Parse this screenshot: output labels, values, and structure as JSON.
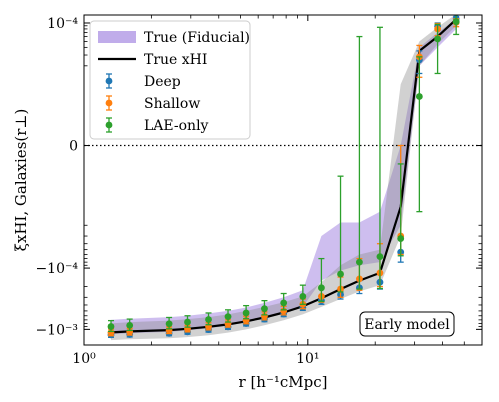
{
  "chart_data": {
    "type": "scatter",
    "xscale": "log",
    "yscale": "symlog",
    "xlim": [
      1,
      60
    ],
    "ylim": [
      -0.0018,
      0.000135
    ],
    "symlog_linthresh": 1e-05,
    "xlabel": "r [h⁻¹cMpc]",
    "ylabel": "ξxHI, Galaxies(r⊥)",
    "xticks": [
      {
        "value": 1,
        "label": "10⁰"
      },
      {
        "value": 10,
        "label": "10¹"
      }
    ],
    "yticks": [
      {
        "value": 0.0001,
        "label": "10⁻⁴"
      },
      {
        "value": 0,
        "label": "0"
      },
      {
        "value": -0.0001,
        "label": "−10⁻⁴"
      },
      {
        "value": -0.001,
        "label": "−10⁻³"
      }
    ],
    "zero_line": true,
    "annotation": "Early model",
    "legend_position": "top-left",
    "legend": [
      {
        "label": "True (Fiducial)",
        "kind": "band",
        "color": "#b9a3e8"
      },
      {
        "label": "True xHI",
        "kind": "line",
        "color": "#000000"
      },
      {
        "label": "Deep",
        "kind": "errorbar",
        "color": "#1f77b4"
      },
      {
        "label": "Shallow",
        "kind": "errorbar",
        "color": "#ff7f0e"
      },
      {
        "label": "LAE-only",
        "kind": "errorbar",
        "color": "#2ca02c"
      }
    ],
    "true_line": {
      "x": [
        1.32,
        1.6,
        2.4,
        2.9,
        3.6,
        4.4,
        5.3,
        6.4,
        7.8,
        9.5,
        11.5,
        14.0,
        17.0,
        21.0,
        26.0,
        31.5,
        38.0,
        46.0
      ],
      "y": [
        -0.00112,
        -0.00108,
        -0.00103,
        -0.00098,
        -0.00091,
        -0.00083,
        -0.00074,
        -0.00064,
        -0.00053,
        -0.00042,
        -0.00031,
        -0.00022,
        -0.00016,
        -0.00012,
        -1e-05,
        3.5e-05,
        6e-05,
        0.000115
      ],
      "band_lo": [
        -0.0015,
        -0.00145,
        -0.0014,
        -0.00134,
        -0.00125,
        -0.00113,
        -0.001,
        -0.00086,
        -0.00071,
        -0.00057,
        -0.00043,
        -0.00032,
        -0.00024,
        -0.00019,
        -3e-05,
        2e-05,
        4.5e-05,
        9e-05
      ],
      "band_hi": [
        -0.0008,
        -0.00076,
        -0.00072,
        -0.00068,
        -0.00063,
        -0.00057,
        -0.0005,
        -0.00043,
        -0.00036,
        -0.00029,
        -0.00017,
        -9e-05,
        -6e-05,
        -5e-05,
        1e-05,
        5e-05,
        8.5e-05,
        0.00014
      ]
    },
    "fiducial_band": {
      "x": [
        1.32,
        1.6,
        2.4,
        2.9,
        3.6,
        4.4,
        5.3,
        6.4,
        7.8,
        9.5,
        11.5,
        14.0,
        17.0,
        21.0,
        26.0,
        31.5,
        38.0,
        46.0
      ],
      "lo": [
        -0.0012,
        -0.00116,
        -0.0011,
        -0.00104,
        -0.00096,
        -0.00087,
        -0.00077,
        -0.00066,
        -0.00055,
        -0.00043,
        -0.00016,
        -0.00011,
        -9e-05,
        -8e-05,
        -2e-05,
        2e-05,
        4e-05,
        8e-05
      ],
      "hi": [
        -0.0007,
        -0.00067,
        -0.00063,
        -0.0006,
        -0.00055,
        -0.0005,
        -0.00044,
        -0.00037,
        -0.0003,
        -0.00023,
        -3e-05,
        -1.8e-05,
        -1.8e-05,
        -1.2e-05,
        0.0,
        4e-05,
        7e-05,
        0.000115
      ]
    },
    "series": [
      {
        "name": "Deep",
        "color": "#1f77b4",
        "x": [
          1.32,
          1.6,
          2.4,
          2.9,
          3.6,
          4.4,
          5.3,
          6.4,
          7.8,
          9.5,
          11.5,
          14.0,
          17.0,
          21.0,
          26.0,
          31.5,
          38.0,
          46.0
        ],
        "y": [
          -0.00123,
          -0.00121,
          -0.00116,
          -0.0011,
          -0.00101,
          -0.00091,
          -0.0008,
          -0.00068,
          -0.00056,
          -0.00044,
          -0.00034,
          -0.00027,
          -0.00021,
          -0.00017,
          -5.5e-05,
          2.5e-05,
          8.8e-05,
          0.000118
        ],
        "err": [
          0.00012,
          0.00012,
          0.00011,
          0.0001,
          0.0001,
          9e-05,
          8e-05,
          7e-05,
          6e-05,
          5e-05,
          5e-05,
          5e-05,
          5e-05,
          5e-05,
          2.5e-05,
          1e-05,
          1.2e-05,
          1e-05
        ]
      },
      {
        "name": "Shallow",
        "color": "#ff7f0e",
        "x": [
          1.32,
          1.6,
          2.4,
          2.9,
          3.6,
          4.4,
          5.3,
          6.4,
          7.8,
          9.5,
          11.5,
          14.0,
          17.0,
          21.0,
          26.0,
          31.5,
          38.0,
          46.0
        ],
        "y": [
          -0.00113,
          -0.0011,
          -0.00104,
          -0.00098,
          -0.0009,
          -0.00081,
          -0.00071,
          -0.00061,
          -0.0005,
          -0.00039,
          -0.00029,
          -0.00022,
          -0.00015,
          -0.00012,
          -3e-05,
          2.8e-05,
          8e-05,
          0.000102
        ],
        "err": [
          0.00014,
          0.00014,
          0.00013,
          0.00012,
          0.00012,
          0.00011,
          0.0001,
          9e-05,
          8e-05,
          7e-05,
          7e-05,
          8e-05,
          8e-05,
          8e-05,
          3e-05,
          1.5e-05,
          1.8e-05,
          1.5e-05
        ]
      },
      {
        "name": "LAE-only",
        "color": "#2ca02c",
        "x": [
          1.32,
          1.6,
          2.4,
          2.9,
          3.6,
          4.4,
          5.3,
          6.4,
          7.8,
          9.5,
          11.5,
          14.0,
          17.0,
          21.0,
          26.0,
          31.5,
          38.0,
          46.0
        ],
        "y": [
          -0.0009,
          -0.00086,
          -0.00081,
          -0.00076,
          -0.00069,
          -0.00062,
          -0.00054,
          -0.00046,
          -0.00037,
          -0.00029,
          -0.00021,
          -0.000125,
          -8e-05,
          -6.5e-05,
          -3.3e-05,
          8e-06,
          5.5e-05,
          0.000105
        ],
        "err": [
          0.00018,
          0.00018,
          0.00017,
          0.00016,
          0.00015,
          0.00014,
          0.00013,
          0.00012,
          0.00011,
          0.0001,
          0.00014,
          0.00012,
          0.00014,
          0.00015,
          3e-05,
          2e-05,
          4e-05,
          4e-05
        ]
      }
    ]
  }
}
